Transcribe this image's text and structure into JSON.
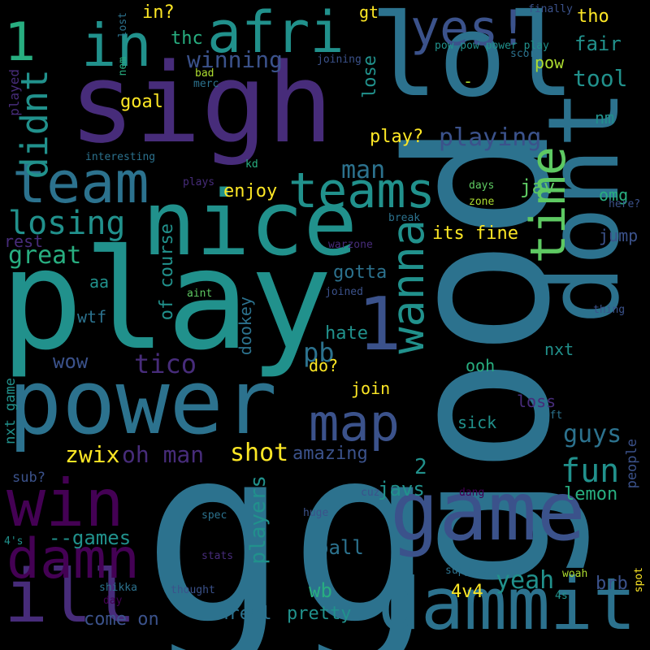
{
  "palette": {
    "background": "#000000",
    "colors": [
      "#440154",
      "#472c7a",
      "#3b528b",
      "#2c728e",
      "#21918c",
      "#28ae80",
      "#5ec962",
      "#addc30",
      "#fde725"
    ]
  },
  "words": [
    {
      "text": "gg",
      "color": "#2c728e"
    },
    {
      "text": "good",
      "color": "#2c728e"
    },
    {
      "text": "play",
      "color": "#21918c"
    },
    {
      "text": "sigh",
      "color": "#472c7a"
    },
    {
      "text": "lol",
      "color": "#2c728e"
    },
    {
      "text": "nice",
      "color": "#21918c"
    },
    {
      "text": "power",
      "color": "#2c728e"
    },
    {
      "text": "dont",
      "color": "#2c728e"
    },
    {
      "text": "game",
      "color": "#3b528b"
    },
    {
      "text": "dammit",
      "color": "#2c728e"
    },
    {
      "text": "win",
      "color": "#440154"
    },
    {
      "text": "ill",
      "color": "#472c7a"
    },
    {
      "text": "damn",
      "color": "#440154"
    },
    {
      "text": "team",
      "color": "#2c728e"
    },
    {
      "text": "in",
      "color": "#21918c"
    },
    {
      "text": "1",
      "color": "#28ae80"
    },
    {
      "text": "1",
      "color": "#3b528b"
    },
    {
      "text": "afri",
      "color": "#21918c"
    },
    {
      "text": "yes!",
      "color": "#3b528b"
    },
    {
      "text": "time",
      "color": "#5ec962"
    },
    {
      "text": "wanna",
      "color": "#21918c"
    },
    {
      "text": "map",
      "color": "#3b528b"
    },
    {
      "text": "teams",
      "color": "#21918c"
    },
    {
      "text": "losing",
      "color": "#21918c"
    },
    {
      "text": "didnt",
      "color": "#21918c"
    },
    {
      "text": "fun",
      "color": "#21918c"
    },
    {
      "text": "shot",
      "color": "#fde725"
    },
    {
      "text": "yeah",
      "color": "#21918c"
    },
    {
      "text": "tico",
      "color": "#472c7a"
    },
    {
      "text": "pb",
      "color": "#2c728e"
    },
    {
      "text": "guys",
      "color": "#2c728e"
    },
    {
      "text": "playing",
      "color": "#3b528b"
    },
    {
      "text": "zwix",
      "color": "#fde725"
    },
    {
      "text": "oh man",
      "color": "#472c7a"
    },
    {
      "text": "tool",
      "color": "#21918c"
    },
    {
      "text": "great",
      "color": "#28ae80"
    },
    {
      "text": "man",
      "color": "#2c728e"
    },
    {
      "text": "winning",
      "color": "#3b528b"
    },
    {
      "text": "players",
      "color": "#21918c"
    },
    {
      "text": "--games",
      "color": "#21918c"
    },
    {
      "text": "ball",
      "color": "#2c728e"
    },
    {
      "text": "wb",
      "color": "#28ae80"
    },
    {
      "text": "2",
      "color": "#21918c"
    },
    {
      "text": "javs",
      "color": "#21918c"
    },
    {
      "text": "4v4",
      "color": "#fde725"
    },
    {
      "text": "jav",
      "color": "#5ec962"
    },
    {
      "text": "amazing",
      "color": "#3b528b"
    },
    {
      "text": "brb",
      "color": "#3b528b"
    },
    {
      "text": "unreal",
      "color": "#2c728e"
    },
    {
      "text": "pretty",
      "color": "#21918c"
    },
    {
      "text": "come on",
      "color": "#3b528b"
    },
    {
      "text": "lemon",
      "color": "#28ae80"
    },
    {
      "text": "wow",
      "color": "#3b528b"
    },
    {
      "text": "tho",
      "color": "#fde725"
    },
    {
      "text": "in?",
      "color": "#fde725"
    },
    {
      "text": "fair",
      "color": "#21918c"
    },
    {
      "text": "thc",
      "color": "#28ae80"
    },
    {
      "text": "goal",
      "color": "#fde725"
    },
    {
      "text": "play?",
      "color": "#fde725"
    },
    {
      "text": "enjoy",
      "color": "#fde725"
    },
    {
      "text": "its fine",
      "color": "#fde725"
    },
    {
      "text": "of course",
      "color": "#21918c"
    },
    {
      "text": "gotta",
      "color": "#2c728e"
    },
    {
      "text": "hate",
      "color": "#21918c"
    },
    {
      "text": "lose",
      "color": "#21918c"
    },
    {
      "text": "omg",
      "color": "#28ae80"
    },
    {
      "text": "jump",
      "color": "#3b528b"
    },
    {
      "text": "sick",
      "color": "#21918c"
    },
    {
      "text": "loss",
      "color": "#472c7a"
    },
    {
      "text": "ooh",
      "color": "#28ae80"
    },
    {
      "text": "nxt",
      "color": "#21918c"
    },
    {
      "text": "join",
      "color": "#fde725"
    },
    {
      "text": "do?",
      "color": "#fde725"
    },
    {
      "text": "dookey",
      "color": "#2c728e"
    },
    {
      "text": "wtf",
      "color": "#2c728e"
    },
    {
      "text": "aa",
      "color": "#21918c"
    },
    {
      "text": "rest",
      "color": "#472c7a"
    },
    {
      "text": "gt",
      "color": "#fde725"
    },
    {
      "text": "pow",
      "color": "#addc30"
    },
    {
      "text": "nm",
      "color": "#21918c"
    },
    {
      "text": "-",
      "color": "#addc30"
    },
    {
      "text": "nxt game",
      "color": "#21918c"
    },
    {
      "text": "sub?",
      "color": "#3b528b"
    },
    {
      "text": "people",
      "color": "#3b528b"
    },
    {
      "text": "played",
      "color": "#472c7a"
    },
    {
      "text": "finally",
      "color": "#3b528b"
    },
    {
      "text": "pow pow power play",
      "color": "#21918c"
    },
    {
      "text": "score",
      "color": "#2c728e"
    },
    {
      "text": "lost",
      "color": "#2c728e"
    },
    {
      "text": "nem",
      "color": "#28ae80"
    },
    {
      "text": "joining",
      "color": "#3b528b"
    },
    {
      "text": "bad",
      "color": "#addc30"
    },
    {
      "text": "merc",
      "color": "#2c728e"
    },
    {
      "text": "interesting",
      "color": "#2c728e"
    },
    {
      "text": "kd",
      "color": "#28ae80"
    },
    {
      "text": "plays",
      "color": "#472c7a"
    },
    {
      "text": "days",
      "color": "#5ec962"
    },
    {
      "text": "zone",
      "color": "#addc30"
    },
    {
      "text": "here?",
      "color": "#3b528b"
    },
    {
      "text": "break",
      "color": "#2c728e"
    },
    {
      "text": "warzone",
      "color": "#472c7a"
    },
    {
      "text": "aint",
      "color": "#5ec962"
    },
    {
      "text": "joined",
      "color": "#3b528b"
    },
    {
      "text": "thing",
      "color": "#3b528b"
    },
    {
      "text": "left",
      "color": "#2c728e"
    },
    {
      "text": "spec",
      "color": "#2c728e"
    },
    {
      "text": "cuz",
      "color": "#3b528b"
    },
    {
      "text": "dang",
      "color": "#440154"
    },
    {
      "text": "huge",
      "color": "#3b528b"
    },
    {
      "text": "4's",
      "color": "#21918c"
    },
    {
      "text": "stats",
      "color": "#472c7a"
    },
    {
      "text": "suppose",
      "color": "#2c728e"
    },
    {
      "text": "woah",
      "color": "#addc30"
    },
    {
      "text": "spot",
      "color": "#fde725"
    },
    {
      "text": "shikka",
      "color": "#2c728e"
    },
    {
      "text": "thought",
      "color": "#3b528b"
    },
    {
      "text": "day",
      "color": "#440154"
    },
    {
      "text": "4s",
      "color": "#21918c"
    }
  ]
}
